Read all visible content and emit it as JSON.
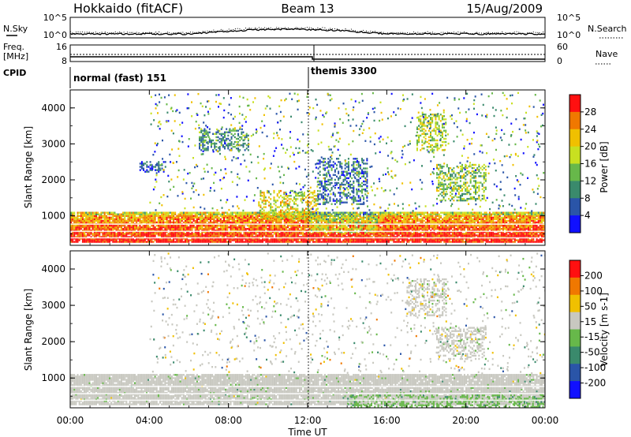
{
  "header": {
    "station": "Hokkaido (fitACF)",
    "beam": "Beam 13",
    "date": "15/Aug/2009"
  },
  "nsky_panel": {
    "left_label": "N.Sky",
    "right_label": "N.Search",
    "left_ticks": [
      "10^5",
      "10^0"
    ],
    "right_ticks": [
      "10^5",
      "10^0"
    ]
  },
  "freq_panel": {
    "left_label_line1": "Freq.",
    "left_label_line2": "[MHz]",
    "right_label": "Nave",
    "left_ticks": [
      "16",
      "8"
    ],
    "right_ticks": [
      "60",
      "0"
    ]
  },
  "cpid": {
    "label": "CPID",
    "segments": [
      {
        "name": "normal (fast) 151",
        "start_hour": 0
      },
      {
        "name": "themis 3300",
        "start_hour": 12
      }
    ]
  },
  "x_axis": {
    "label": "Time UT",
    "ticks": [
      "00:00",
      "04:00",
      "08:00",
      "12:00",
      "16:00",
      "20:00",
      "00:00"
    ],
    "range_hours": [
      0,
      24
    ]
  },
  "chart_data": [
    {
      "type": "heatmap",
      "title": "",
      "xlabel": "",
      "ylabel": "Slant Range [km]",
      "ylim": [
        180,
        4500
      ],
      "yticks": [
        "1000",
        "2000",
        "3000",
        "4000"
      ],
      "colorbar": {
        "label": "Power [dB]",
        "ticks": [
          "4",
          "8",
          "12",
          "16",
          "20",
          "24",
          "28"
        ],
        "range": [
          0,
          30
        ],
        "colors": [
          "#1010ff",
          "#2a55a8",
          "#3a8a6c",
          "#67b84a",
          "#c8e020",
          "#f0c000",
          "#f07800",
          "#ff1010"
        ]
      },
      "regions": [
        {
          "t": [
            0,
            24
          ],
          "r": [
            250,
            1100
          ],
          "value": 27,
          "note": "near-range band"
        },
        {
          "t": [
            9.5,
            12.5
          ],
          "r": [
            900,
            1700
          ],
          "value": 18
        },
        {
          "t": [
            12.5,
            15
          ],
          "r": [
            1300,
            2600
          ],
          "value": 8
        },
        {
          "t": [
            17.5,
            19
          ],
          "r": [
            2800,
            3800
          ],
          "value": 16
        },
        {
          "t": [
            18.5,
            21
          ],
          "r": [
            1400,
            2400
          ],
          "value": 14
        },
        {
          "t": [
            6.5,
            9
          ],
          "r": [
            2800,
            3400
          ],
          "value": 10
        },
        {
          "t": [
            3.5,
            4.8
          ],
          "r": [
            2200,
            2500
          ],
          "value": 6
        }
      ]
    },
    {
      "type": "heatmap",
      "title": "",
      "xlabel": "Time UT",
      "ylabel": "Slant Range [km]",
      "ylim": [
        180,
        4500
      ],
      "yticks": [
        "1000",
        "2000",
        "3000",
        "4000"
      ],
      "colorbar": {
        "label": "Velocity [m s-1]",
        "ticks": [
          "200",
          "100",
          "50",
          "15",
          "-15",
          "-50",
          "-100",
          "-200"
        ],
        "range": [
          -250,
          250
        ],
        "colors": [
          "#1010ff",
          "#2a55a8",
          "#3a8a6c",
          "#67b84a",
          "#c8c8c0",
          "#f0c000",
          "#f07800",
          "#ff1010"
        ]
      },
      "regions": [
        {
          "t": [
            0,
            24
          ],
          "r": [
            250,
            1100
          ],
          "value": 0,
          "note": "ground scatter band"
        },
        {
          "t": [
            17,
            19
          ],
          "r": [
            2700,
            3700
          ],
          "value": 0
        },
        {
          "t": [
            18.5,
            21
          ],
          "r": [
            1500,
            2400
          ],
          "value": 0
        },
        {
          "t": [
            14,
            24
          ],
          "r": [
            180,
            500
          ],
          "value": -60
        }
      ]
    }
  ]
}
